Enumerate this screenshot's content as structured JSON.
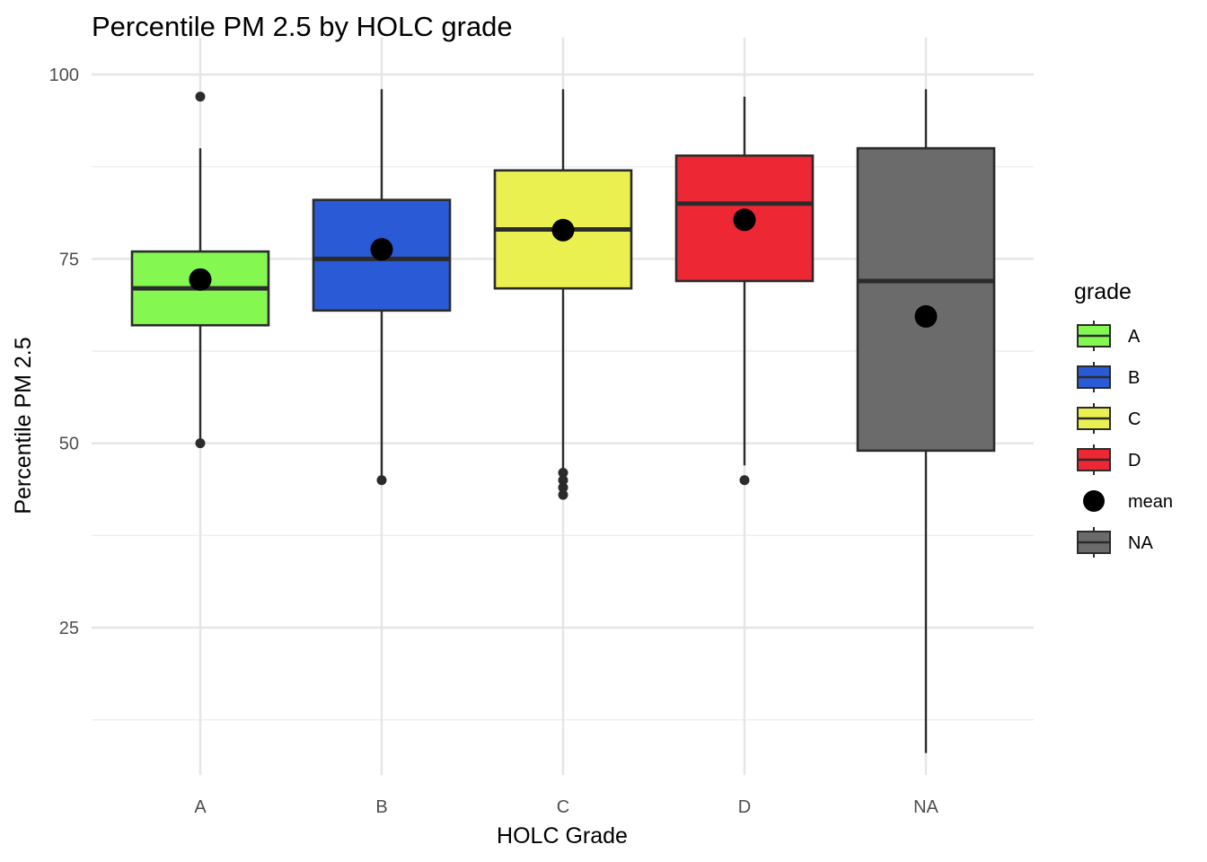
{
  "chart_data": {
    "type": "boxplot",
    "title": "Percentile PM 2.5 by HOLC grade",
    "xlabel": "HOLC Grade",
    "ylabel": "Percentile PM 2.5",
    "ylim": [
      5,
      105
    ],
    "yticks": [
      25,
      50,
      75,
      100
    ],
    "y_minor_ticks": [
      12.5,
      37.5,
      62.5,
      87.5
    ],
    "grid": true,
    "legend": {
      "title": "grade",
      "placement": "right",
      "entries": [
        {
          "label": "A",
          "kind": "box",
          "color": "#84f851"
        },
        {
          "label": "B",
          "kind": "box",
          "color": "#2a5ad5"
        },
        {
          "label": "C",
          "kind": "box",
          "color": "#eaf04f"
        },
        {
          "label": "D",
          "kind": "box",
          "color": "#ee2735"
        },
        {
          "label": "mean",
          "kind": "point",
          "color": "#000000"
        },
        {
          "label": "NA",
          "kind": "box",
          "color": "#6b6b6b"
        }
      ]
    },
    "categories": [
      "A",
      "B",
      "C",
      "D",
      "NA"
    ],
    "boxes": [
      {
        "category": "A",
        "color": "#84f851",
        "whisker_low": 50,
        "q1": 66,
        "median": 71,
        "q3": 76,
        "whisker_high": 90,
        "mean": 72.2,
        "outliers": [
          97,
          50
        ]
      },
      {
        "category": "B",
        "color": "#2a5ad5",
        "whisker_low": 45,
        "q1": 68,
        "median": 75,
        "q3": 83,
        "whisker_high": 98,
        "mean": 76.3,
        "outliers": [
          45
        ]
      },
      {
        "category": "C",
        "color": "#eaf04f",
        "whisker_low": 46,
        "q1": 71,
        "median": 79,
        "q3": 87,
        "whisker_high": 98,
        "mean": 78.9,
        "outliers": [
          46,
          45,
          44,
          43
        ]
      },
      {
        "category": "D",
        "color": "#ee2735",
        "whisker_low": 47,
        "q1": 72,
        "median": 82.5,
        "q3": 89,
        "whisker_high": 97,
        "mean": 80.3,
        "outliers": [
          45
        ]
      },
      {
        "category": "NA",
        "color": "#6b6b6b",
        "whisker_low": 8,
        "q1": 49,
        "median": 72,
        "q3": 90,
        "whisker_high": 98,
        "mean": 67.2,
        "outliers": []
      }
    ]
  }
}
